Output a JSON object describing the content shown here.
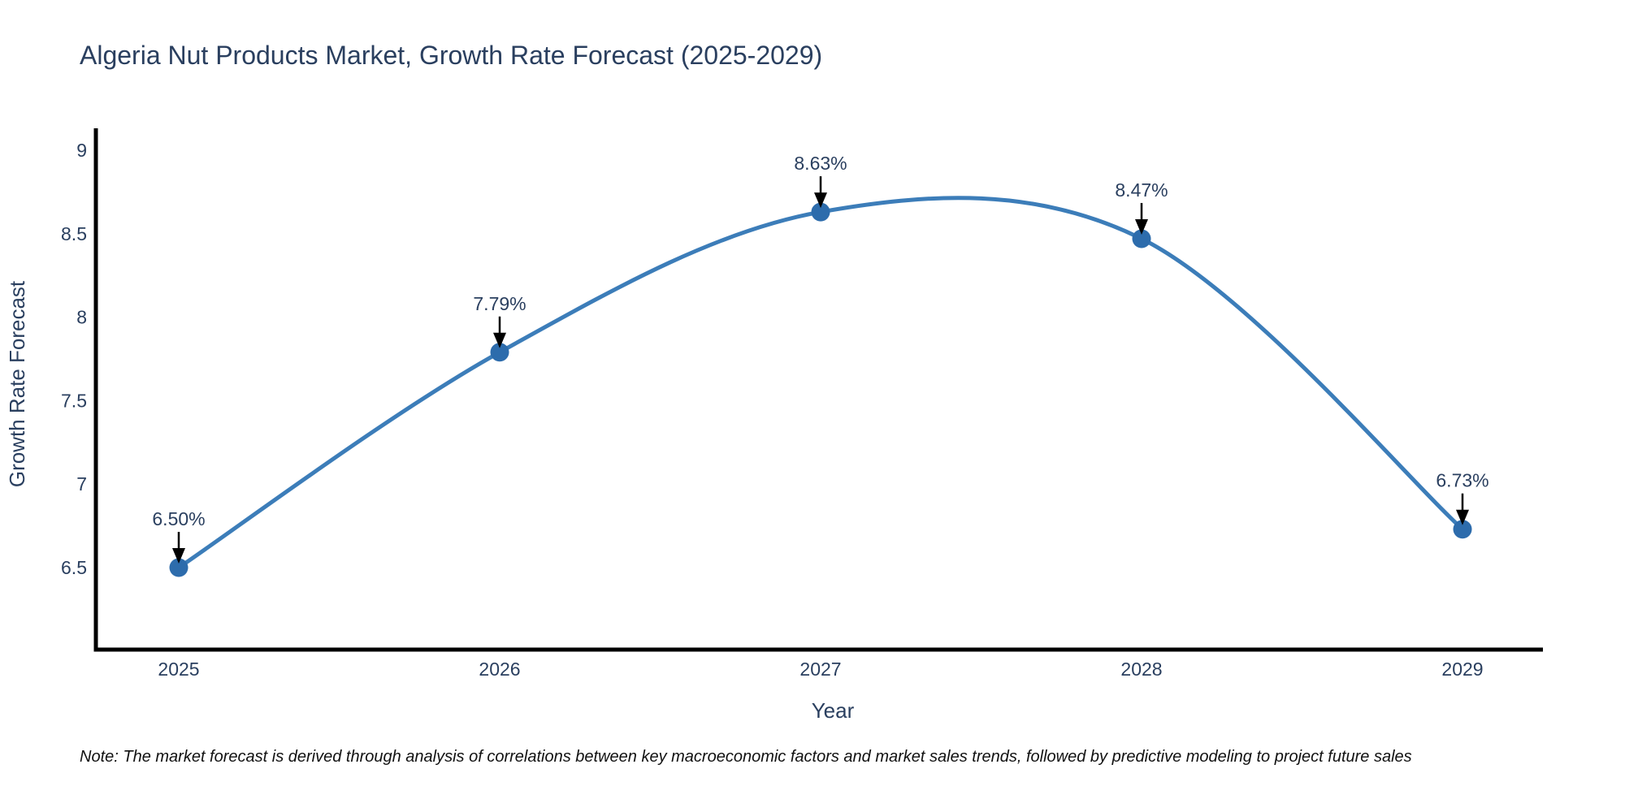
{
  "chart_data": {
    "type": "line",
    "title": "Algeria Nut Products Market, Growth Rate Forecast (2025-2029)",
    "xlabel": "Year",
    "ylabel": "Growth Rate Forecast",
    "x": [
      2025,
      2026,
      2027,
      2028,
      2029
    ],
    "values": [
      6.5,
      7.79,
      8.63,
      8.47,
      6.73
    ],
    "point_labels": [
      "6.50%",
      "7.79%",
      "8.63%",
      "8.47%",
      "6.73%"
    ],
    "x_tick_labels": [
      "2025",
      "2026",
      "2027",
      "2028",
      "2029"
    ],
    "y_tick_labels": [
      "9",
      "8.5",
      "8",
      "7.5",
      "7",
      "6.5"
    ],
    "y_ticks": [
      9,
      8.5,
      8,
      7.5,
      7,
      6.5
    ],
    "ylim": [
      6.0,
      9.12
    ],
    "grid": false,
    "legend_position": "none",
    "line_color": "#3c7db9",
    "marker_color": "#2d6cac",
    "annotation_arrow_color": "#000000",
    "axis_color": "#000000",
    "text_color": "#2a3f5f"
  },
  "note": "Note: The market forecast is derived through analysis of correlations between key macroeconomic factors and market sales trends, followed by predictive modeling to project future sales"
}
